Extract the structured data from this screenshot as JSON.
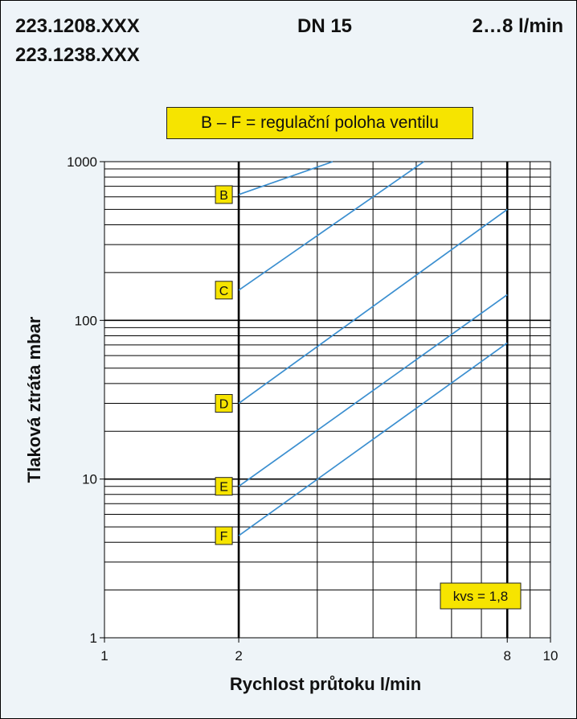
{
  "header": {
    "model_line_1": "223.1208.XXX",
    "model_line_2": "223.1238.XXX",
    "dn": "DN 15",
    "flow_range": "2…8 l/min"
  },
  "legend_note": "B – F = regulační poloha ventilu",
  "chart_data": {
    "type": "line",
    "xlabel": "Rychlost průtoku l/min",
    "ylabel": "Tlaková ztráta mbar",
    "xscale": "log",
    "yscale": "log",
    "xlim": [
      1,
      10
    ],
    "ylim": [
      1,
      1000
    ],
    "x_ticks": [
      "1",
      "2",
      "8",
      "10"
    ],
    "y_ticks": [
      "1",
      "10",
      "100",
      "1000"
    ],
    "grid": true,
    "emphasized_x_lines": [
      2,
      8
    ],
    "series": [
      {
        "name": "B",
        "x": [
          2,
          3.25
        ],
        "y": [
          620,
          1000
        ]
      },
      {
        "name": "C",
        "x": [
          2,
          5.2
        ],
        "y": [
          155,
          1000
        ]
      },
      {
        "name": "D",
        "x": [
          2,
          8
        ],
        "y": [
          30,
          500
        ]
      },
      {
        "name": "E",
        "x": [
          2,
          8
        ],
        "y": [
          9,
          145
        ]
      },
      {
        "name": "F",
        "x": [
          2,
          8
        ],
        "y": [
          4.4,
          72
        ]
      }
    ],
    "annotation": "kvs = 1,8",
    "colors": {
      "line": "#3b8fd0",
      "label_fill": "#f6e400",
      "panel": "#eef4f8"
    }
  }
}
